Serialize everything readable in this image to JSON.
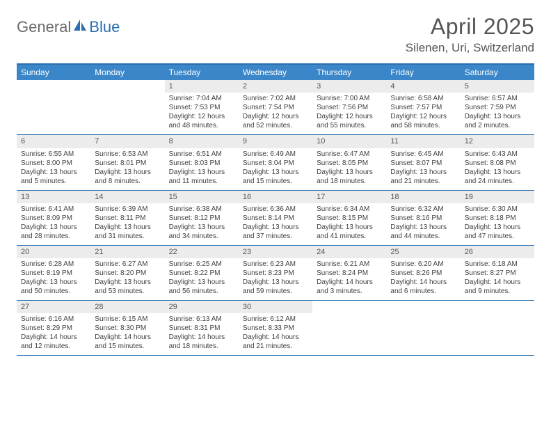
{
  "brand": {
    "general": "General",
    "blue": "Blue"
  },
  "title": "April 2025",
  "location": "Silenen, Uri, Switzerland",
  "colors": {
    "header_bg": "#3a86c8",
    "border": "#2b6fb0",
    "daynum_bg": "#ececec",
    "text": "#404040"
  },
  "days_of_week": [
    "Sunday",
    "Monday",
    "Tuesday",
    "Wednesday",
    "Thursday",
    "Friday",
    "Saturday"
  ],
  "weeks": [
    [
      {
        "n": "",
        "sr": "",
        "ss": "",
        "dl": ""
      },
      {
        "n": "",
        "sr": "",
        "ss": "",
        "dl": ""
      },
      {
        "n": "1",
        "sr": "Sunrise: 7:04 AM",
        "ss": "Sunset: 7:53 PM",
        "dl": "Daylight: 12 hours and 48 minutes."
      },
      {
        "n": "2",
        "sr": "Sunrise: 7:02 AM",
        "ss": "Sunset: 7:54 PM",
        "dl": "Daylight: 12 hours and 52 minutes."
      },
      {
        "n": "3",
        "sr": "Sunrise: 7:00 AM",
        "ss": "Sunset: 7:56 PM",
        "dl": "Daylight: 12 hours and 55 minutes."
      },
      {
        "n": "4",
        "sr": "Sunrise: 6:58 AM",
        "ss": "Sunset: 7:57 PM",
        "dl": "Daylight: 12 hours and 58 minutes."
      },
      {
        "n": "5",
        "sr": "Sunrise: 6:57 AM",
        "ss": "Sunset: 7:59 PM",
        "dl": "Daylight: 13 hours and 2 minutes."
      }
    ],
    [
      {
        "n": "6",
        "sr": "Sunrise: 6:55 AM",
        "ss": "Sunset: 8:00 PM",
        "dl": "Daylight: 13 hours and 5 minutes."
      },
      {
        "n": "7",
        "sr": "Sunrise: 6:53 AM",
        "ss": "Sunset: 8:01 PM",
        "dl": "Daylight: 13 hours and 8 minutes."
      },
      {
        "n": "8",
        "sr": "Sunrise: 6:51 AM",
        "ss": "Sunset: 8:03 PM",
        "dl": "Daylight: 13 hours and 11 minutes."
      },
      {
        "n": "9",
        "sr": "Sunrise: 6:49 AM",
        "ss": "Sunset: 8:04 PM",
        "dl": "Daylight: 13 hours and 15 minutes."
      },
      {
        "n": "10",
        "sr": "Sunrise: 6:47 AM",
        "ss": "Sunset: 8:05 PM",
        "dl": "Daylight: 13 hours and 18 minutes."
      },
      {
        "n": "11",
        "sr": "Sunrise: 6:45 AM",
        "ss": "Sunset: 8:07 PM",
        "dl": "Daylight: 13 hours and 21 minutes."
      },
      {
        "n": "12",
        "sr": "Sunrise: 6:43 AM",
        "ss": "Sunset: 8:08 PM",
        "dl": "Daylight: 13 hours and 24 minutes."
      }
    ],
    [
      {
        "n": "13",
        "sr": "Sunrise: 6:41 AM",
        "ss": "Sunset: 8:09 PM",
        "dl": "Daylight: 13 hours and 28 minutes."
      },
      {
        "n": "14",
        "sr": "Sunrise: 6:39 AM",
        "ss": "Sunset: 8:11 PM",
        "dl": "Daylight: 13 hours and 31 minutes."
      },
      {
        "n": "15",
        "sr": "Sunrise: 6:38 AM",
        "ss": "Sunset: 8:12 PM",
        "dl": "Daylight: 13 hours and 34 minutes."
      },
      {
        "n": "16",
        "sr": "Sunrise: 6:36 AM",
        "ss": "Sunset: 8:14 PM",
        "dl": "Daylight: 13 hours and 37 minutes."
      },
      {
        "n": "17",
        "sr": "Sunrise: 6:34 AM",
        "ss": "Sunset: 8:15 PM",
        "dl": "Daylight: 13 hours and 41 minutes."
      },
      {
        "n": "18",
        "sr": "Sunrise: 6:32 AM",
        "ss": "Sunset: 8:16 PM",
        "dl": "Daylight: 13 hours and 44 minutes."
      },
      {
        "n": "19",
        "sr": "Sunrise: 6:30 AM",
        "ss": "Sunset: 8:18 PM",
        "dl": "Daylight: 13 hours and 47 minutes."
      }
    ],
    [
      {
        "n": "20",
        "sr": "Sunrise: 6:28 AM",
        "ss": "Sunset: 8:19 PM",
        "dl": "Daylight: 13 hours and 50 minutes."
      },
      {
        "n": "21",
        "sr": "Sunrise: 6:27 AM",
        "ss": "Sunset: 8:20 PM",
        "dl": "Daylight: 13 hours and 53 minutes."
      },
      {
        "n": "22",
        "sr": "Sunrise: 6:25 AM",
        "ss": "Sunset: 8:22 PM",
        "dl": "Daylight: 13 hours and 56 minutes."
      },
      {
        "n": "23",
        "sr": "Sunrise: 6:23 AM",
        "ss": "Sunset: 8:23 PM",
        "dl": "Daylight: 13 hours and 59 minutes."
      },
      {
        "n": "24",
        "sr": "Sunrise: 6:21 AM",
        "ss": "Sunset: 8:24 PM",
        "dl": "Daylight: 14 hours and 3 minutes."
      },
      {
        "n": "25",
        "sr": "Sunrise: 6:20 AM",
        "ss": "Sunset: 8:26 PM",
        "dl": "Daylight: 14 hours and 6 minutes."
      },
      {
        "n": "26",
        "sr": "Sunrise: 6:18 AM",
        "ss": "Sunset: 8:27 PM",
        "dl": "Daylight: 14 hours and 9 minutes."
      }
    ],
    [
      {
        "n": "27",
        "sr": "Sunrise: 6:16 AM",
        "ss": "Sunset: 8:29 PM",
        "dl": "Daylight: 14 hours and 12 minutes."
      },
      {
        "n": "28",
        "sr": "Sunrise: 6:15 AM",
        "ss": "Sunset: 8:30 PM",
        "dl": "Daylight: 14 hours and 15 minutes."
      },
      {
        "n": "29",
        "sr": "Sunrise: 6:13 AM",
        "ss": "Sunset: 8:31 PM",
        "dl": "Daylight: 14 hours and 18 minutes."
      },
      {
        "n": "30",
        "sr": "Sunrise: 6:12 AM",
        "ss": "Sunset: 8:33 PM",
        "dl": "Daylight: 14 hours and 21 minutes."
      },
      {
        "n": "",
        "sr": "",
        "ss": "",
        "dl": ""
      },
      {
        "n": "",
        "sr": "",
        "ss": "",
        "dl": ""
      },
      {
        "n": "",
        "sr": "",
        "ss": "",
        "dl": ""
      }
    ]
  ]
}
